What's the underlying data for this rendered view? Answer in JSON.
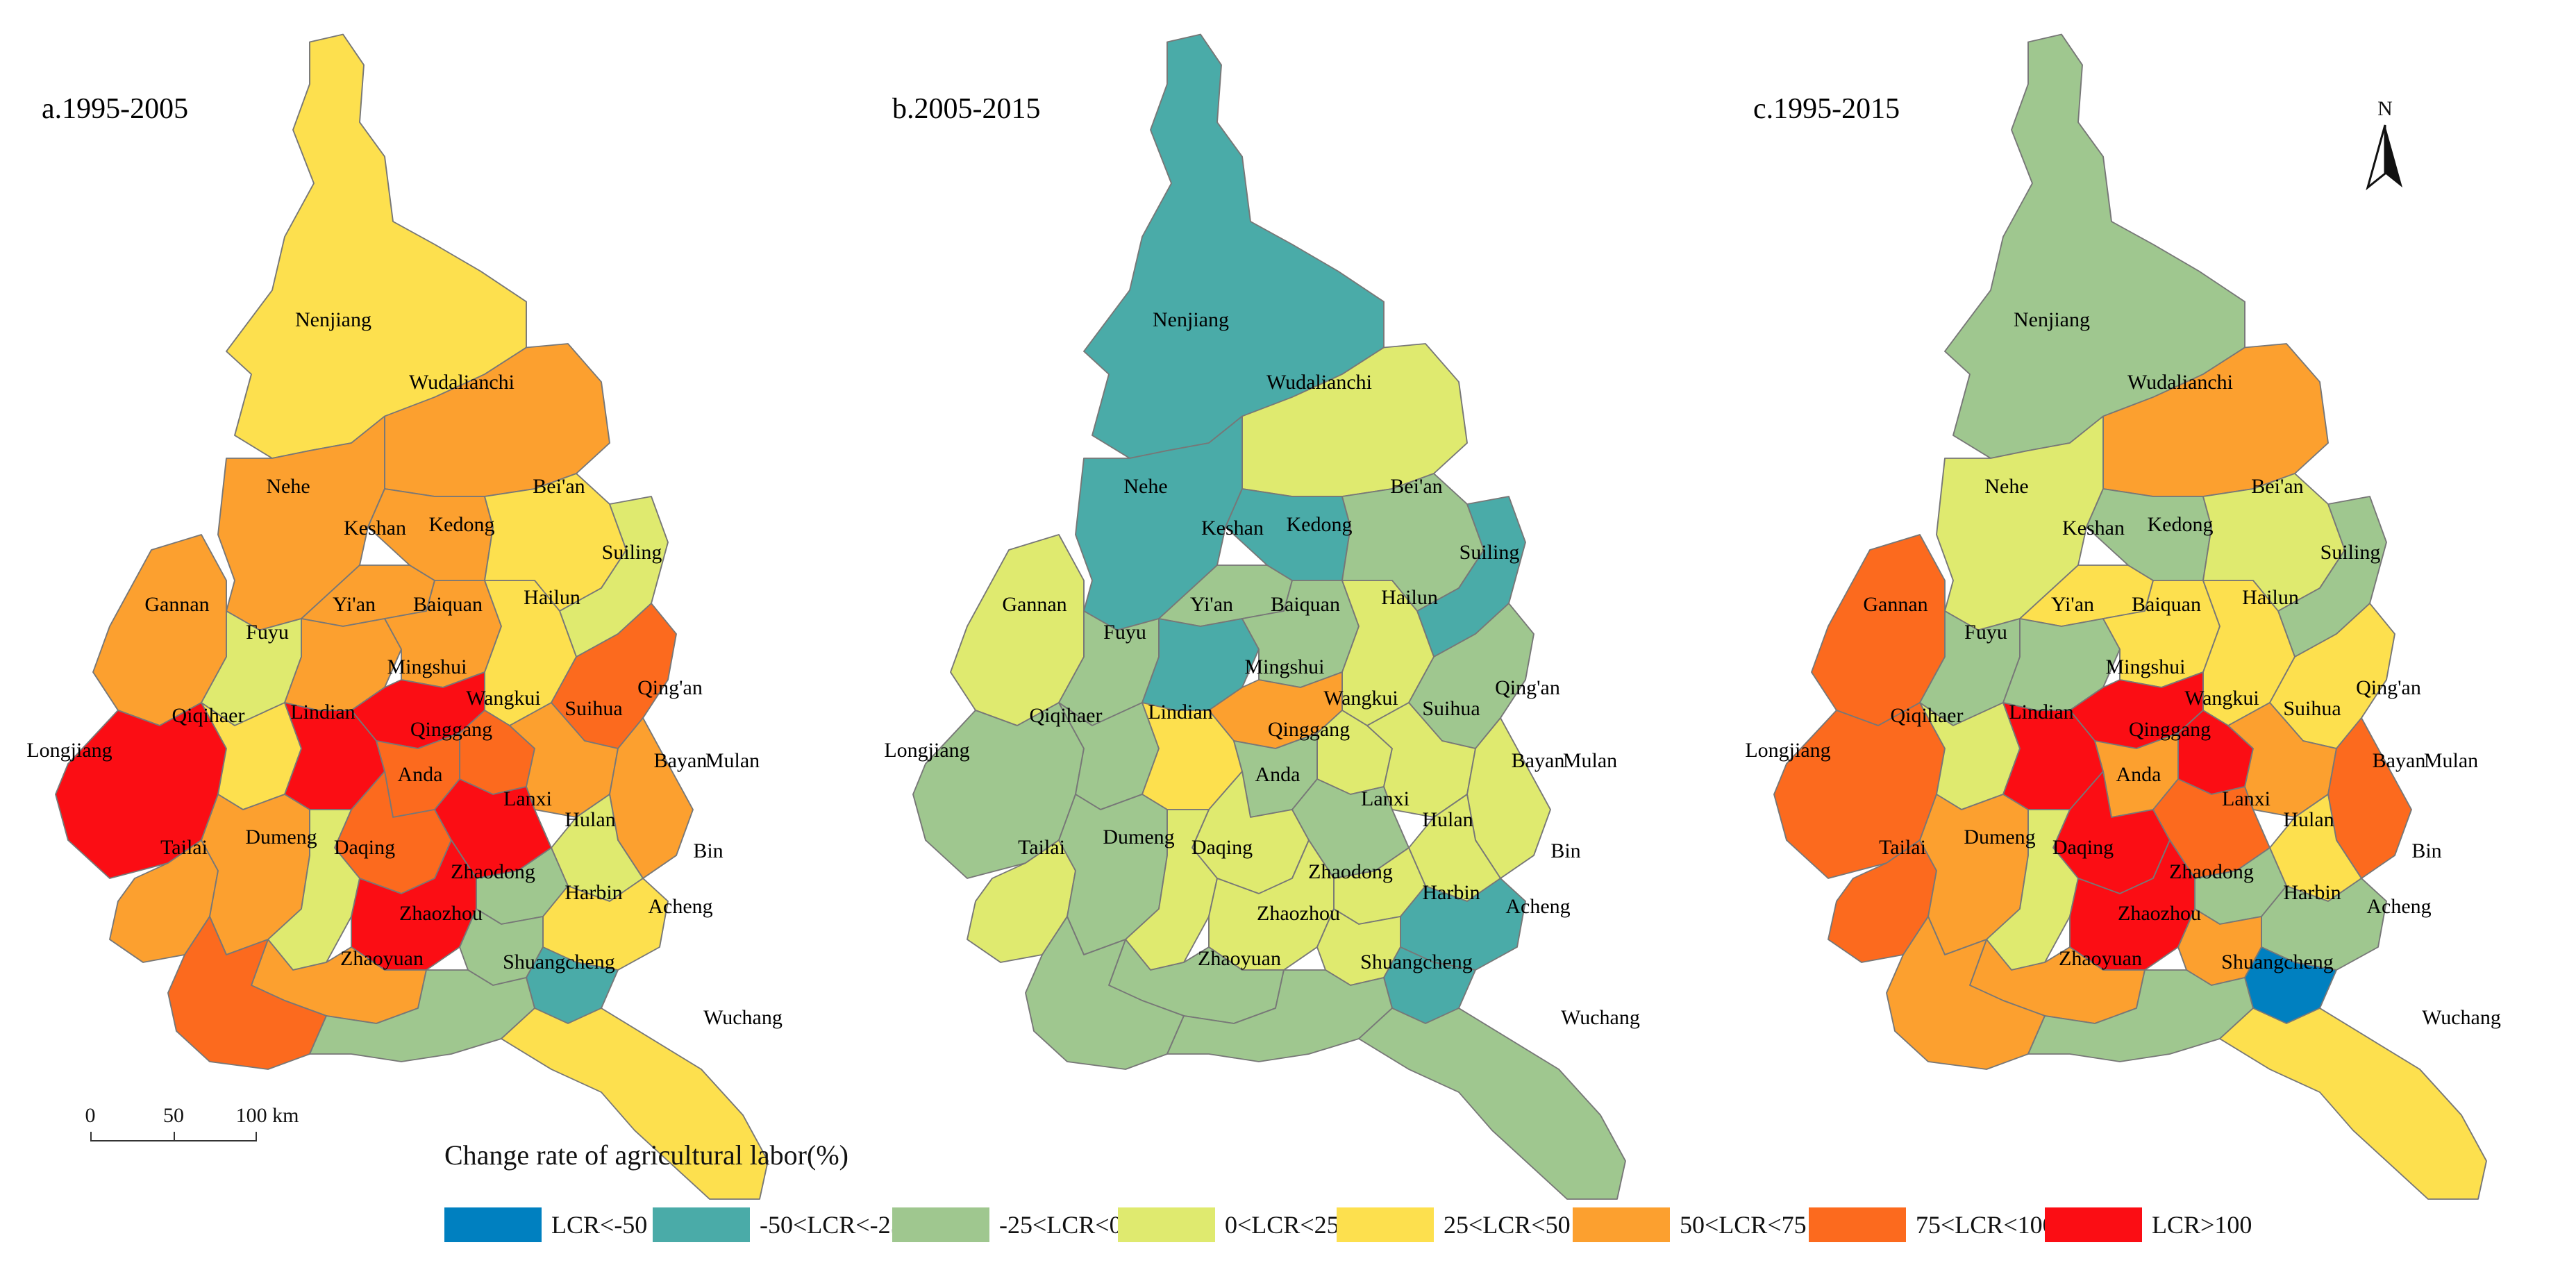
{
  "map": {
    "legend_title": "Change rate of agricultural labor(%)",
    "scale": {
      "labels": [
        "0",
        "50",
        "100 km"
      ]
    },
    "north_label": "N",
    "classes": [
      {
        "key": "c1",
        "label": "LCR<-50",
        "color": "#0080c0"
      },
      {
        "key": "c2",
        "label": "-50<LCR<-25",
        "color": "#4aaba8"
      },
      {
        "key": "c3",
        "label": "-25<LCR<0",
        "color": "#9fc78f"
      },
      {
        "key": "c4",
        "label": "0<LCR<25",
        "color": "#dfea6f"
      },
      {
        "key": "c5",
        "label": "25<LCR<50",
        "color": "#fde04e"
      },
      {
        "key": "c6",
        "label": "50<LCR<75",
        "color": "#fca02f"
      },
      {
        "key": "c7",
        "label": "75<LCR<100",
        "color": "#fc6a1e"
      },
      {
        "key": "c8",
        "label": "LCR>100",
        "color": "#fb0d14"
      }
    ],
    "panels": [
      {
        "title": "a.1995-2005",
        "classes": {
          "Nenjiang": "c5",
          "Wudalianchi": "c6",
          "Nehe": "c6",
          "Keshan": "c6",
          "Kedong": "c6",
          "Bei'an": "c5",
          "Suiling": "c4",
          "Gannan": "c6",
          "Fuyu": "c4",
          "Yi'an": "c6",
          "Baiquan": "c6",
          "Hailun": "c5",
          "Mingshui": "c8",
          "Qing'an": "c7",
          "Longjiang": "c8",
          "Qiqihaer": "c5",
          "Lindian": "c8",
          "Wangkui": "c7",
          "Suihua": "c6",
          "Qinggang": "c7",
          "Mulan": "c6",
          "Bayan": "c4",
          "Anda": "c7",
          "Lanxi": "c8",
          "Hulan": "c3",
          "Tailai": "c6",
          "Dumeng": "c6",
          "Daqing": "c4",
          "Zhaodong": "c8",
          "Bin": "c5",
          "Harbin": "c3",
          "Acheng": "c2",
          "Zhaozhou": "c6",
          "Zhaoyuan": "c7",
          "Shuangcheng": "c3",
          "Wuchang": "c5"
        }
      },
      {
        "title": "b.2005-2015",
        "classes": {
          "Nenjiang": "c2",
          "Wudalianchi": "c4",
          "Nehe": "c2",
          "Keshan": "c3",
          "Kedong": "c2",
          "Bei'an": "c3",
          "Suiling": "c2",
          "Gannan": "c4",
          "Fuyu": "c3",
          "Yi'an": "c2",
          "Baiquan": "c3",
          "Hailun": "c4",
          "Mingshui": "c6",
          "Qing'an": "c3",
          "Longjiang": "c3",
          "Qiqihaer": "c3",
          "Lindian": "c5",
          "Wangkui": "c4",
          "Suihua": "c4",
          "Qinggang": "c3",
          "Mulan": "c4",
          "Bayan": "c4",
          "Anda": "c4",
          "Lanxi": "c3",
          "Hulan": "c4",
          "Tailai": "c4",
          "Dumeng": "c3",
          "Daqing": "c4",
          "Zhaodong": "c4",
          "Bin": "c2",
          "Harbin": "c4",
          "Acheng": "c2",
          "Zhaozhou": "c3",
          "Zhaoyuan": "c3",
          "Shuangcheng": "c3",
          "Wuchang": "c3"
        }
      },
      {
        "title": "c.1995-2015",
        "classes": {
          "Nenjiang": "c3",
          "Wudalianchi": "c6",
          "Nehe": "c4",
          "Keshan": "c5",
          "Kedong": "c3",
          "Bei'an": "c4",
          "Suiling": "c3",
          "Gannan": "c7",
          "Fuyu": "c3",
          "Yi'an": "c3",
          "Baiquan": "c5",
          "Hailun": "c5",
          "Mingshui": "c8",
          "Qing'an": "c5",
          "Longjiang": "c7",
          "Qiqihaer": "c4",
          "Lindian": "c8",
          "Wangkui": "c8",
          "Suihua": "c6",
          "Qinggang": "c6",
          "Mulan": "c7",
          "Bayan": "c5",
          "Anda": "c8",
          "Lanxi": "c7",
          "Hulan": "c3",
          "Tailai": "c7",
          "Dumeng": "c6",
          "Daqing": "c4",
          "Zhaodong": "c8",
          "Bin": "c3",
          "Harbin": "c6",
          "Acheng": "c1",
          "Zhaozhou": "c6",
          "Zhaoyuan": "c6",
          "Shuangcheng": "c3",
          "Wuchang": "c5"
        }
      }
    ]
  }
}
